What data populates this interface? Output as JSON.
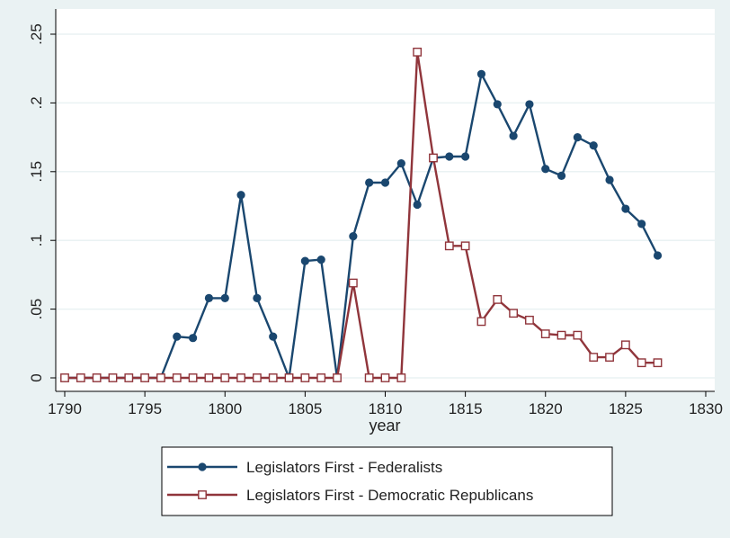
{
  "chart_data": {
    "type": "line",
    "title": "",
    "xlabel": "year",
    "ylabel": "",
    "xlim": [
      1790,
      1830
    ],
    "ylim": [
      0,
      0.25
    ],
    "x_ticks": [
      1790,
      1795,
      1800,
      1805,
      1810,
      1815,
      1820,
      1825,
      1830
    ],
    "x_tick_labels": [
      "1790",
      "1795",
      "1800",
      "1805",
      "1810",
      "1815",
      "1820",
      "1825",
      "1830"
    ],
    "y_ticks": [
      0,
      0.05,
      0.1,
      0.15,
      0.2,
      0.25
    ],
    "y_tick_labels": [
      "0",
      ".05",
      ".1",
      ".15",
      ".2",
      ".25"
    ],
    "grid": true,
    "legend_position": "bottom",
    "series": [
      {
        "name": "Legislators First - Federalists",
        "color": "#1a476f",
        "marker": "filled-circle",
        "x": [
          1790,
          1791,
          1792,
          1793,
          1794,
          1795,
          1796,
          1797,
          1798,
          1799,
          1800,
          1801,
          1802,
          1803,
          1804,
          1805,
          1806,
          1807,
          1808,
          1809,
          1810,
          1811,
          1812,
          1813,
          1814,
          1815,
          1816,
          1817,
          1818,
          1819,
          1820,
          1821,
          1822,
          1823,
          1824,
          1825,
          1826,
          1827
        ],
        "values": [
          0,
          0,
          0,
          0,
          0,
          0,
          0,
          0.03,
          0.029,
          0.058,
          0.058,
          0.133,
          0.058,
          0.03,
          0,
          0.085,
          0.086,
          0,
          0.103,
          0.142,
          0.142,
          0.156,
          0.126,
          0.16,
          0.161,
          0.161,
          0.221,
          0.199,
          0.176,
          0.199,
          0.152,
          0.147,
          0.175,
          0.169,
          0.144,
          0.123,
          0.112,
          0.089
        ]
      },
      {
        "name": "Legislators First - Democratic Republicans",
        "color": "#90353b",
        "marker": "hollow-square",
        "x": [
          1790,
          1791,
          1792,
          1793,
          1794,
          1795,
          1796,
          1797,
          1798,
          1799,
          1800,
          1801,
          1802,
          1803,
          1804,
          1805,
          1806,
          1807,
          1808,
          1809,
          1810,
          1811,
          1812,
          1813,
          1814,
          1815,
          1816,
          1817,
          1818,
          1819,
          1820,
          1821,
          1822,
          1823,
          1824,
          1825,
          1826,
          1827
        ],
        "values": [
          0,
          0,
          0,
          0,
          0,
          0,
          0,
          0,
          0,
          0,
          0,
          0,
          0,
          0,
          0,
          0,
          0,
          0,
          0.069,
          0,
          0,
          0,
          0.237,
          0.16,
          0.096,
          0.096,
          0.041,
          0.057,
          0.047,
          0.042,
          0.032,
          0.031,
          0.031,
          0.015,
          0.015,
          0.024,
          0.011,
          0.011
        ]
      }
    ]
  }
}
